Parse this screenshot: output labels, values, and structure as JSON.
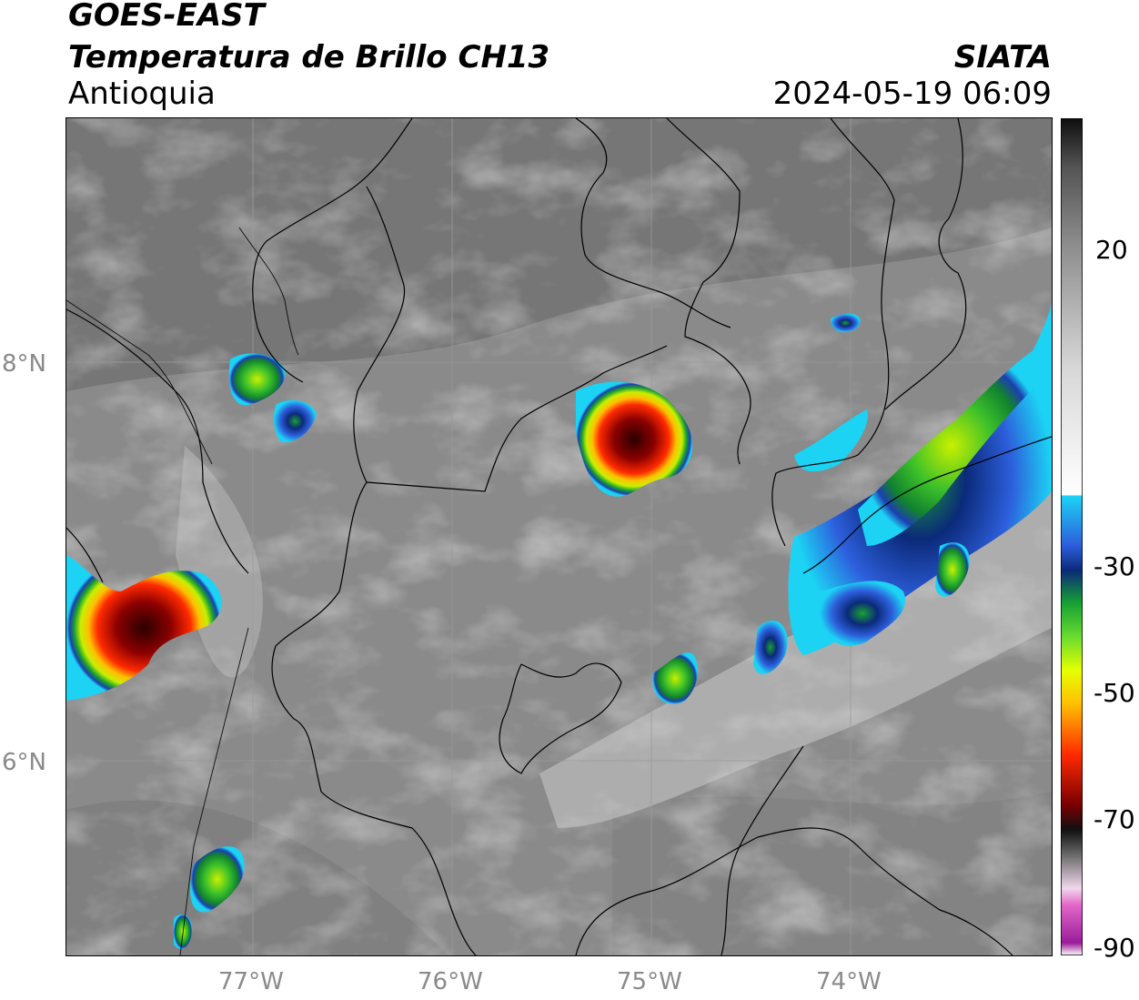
{
  "header": {
    "satellite": "GOES-EAST",
    "product": "Temperatura de Brillo CH13",
    "region": "Antioquia",
    "organization": "SIATA",
    "timestamp": "2024-05-19 06:09"
  },
  "map": {
    "lat_labels": [
      "8°N",
      "6°N"
    ],
    "lon_labels": [
      "77°W",
      "76°W",
      "75°W",
      "74°W"
    ]
  },
  "colorbar": {
    "ticks": [
      "20",
      "-30",
      "-50",
      "-70",
      "-90"
    ],
    "stops": [
      "#9a1d9a",
      "#e266c8",
      "#f2f2f2",
      "#2f2f2f",
      "#101010",
      "#7a0000",
      "#ff2a00",
      "#ffbf00",
      "#e6ff00",
      "#6bdc2f",
      "#16a233",
      "#0b2a7a",
      "#2d5fdc",
      "#1cd3f4",
      "#ffffff",
      "#d8d8d8",
      "#9c9c9c",
      "#5e5e5e",
      "#101010"
    ]
  }
}
